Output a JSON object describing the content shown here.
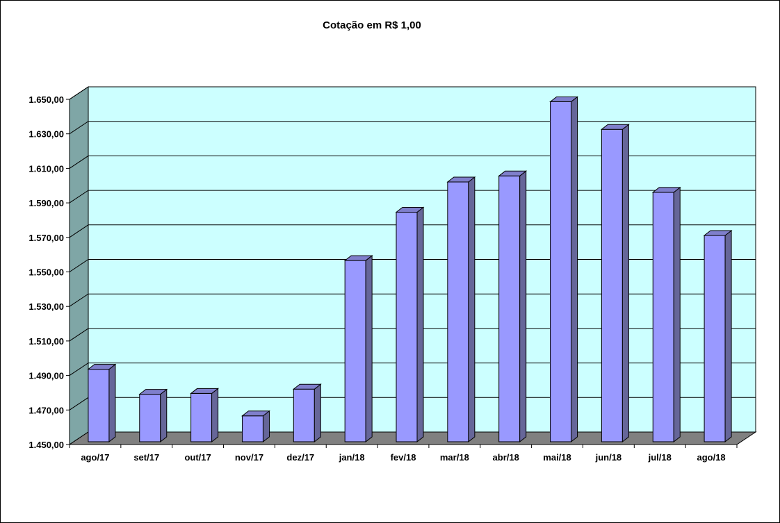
{
  "chart_data": {
    "type": "bar",
    "title": "Cotação em R$ 1,00",
    "xlabel": "",
    "ylabel": "",
    "categories": [
      "ago/17",
      "set/17",
      "out/17",
      "nov/17",
      "dez/17",
      "jan/18",
      "fev/18",
      "mar/18",
      "abr/18",
      "mai/18",
      "jun/18",
      "jul/18",
      "ago/18"
    ],
    "values": [
      1492.0,
      1477.5,
      1478.0,
      1465.0,
      1480.5,
      1555.0,
      1583.0,
      1600.5,
      1604.0,
      1647.0,
      1631.0,
      1594.5,
      1569.5
    ],
    "ylim": [
      1450,
      1650
    ],
    "yticks": [
      1450,
      1470,
      1490,
      1510,
      1530,
      1550,
      1570,
      1590,
      1610,
      1630,
      1650
    ],
    "ytick_labels": [
      "1.450,00",
      "1.470,00",
      "1.490,00",
      "1.510,00",
      "1.530,00",
      "1.550,00",
      "1.570,00",
      "1.590,00",
      "1.610,00",
      "1.630,00",
      "1.650,00"
    ],
    "grid": true,
    "legend": "none",
    "colors": {
      "bar_front": "#9999ff",
      "bar_side": "#666699",
      "bar_top": "#7f7fcc",
      "plot_back": "#ccffff",
      "side_wall": "#7fa6a6",
      "floor": "#808080"
    }
  }
}
